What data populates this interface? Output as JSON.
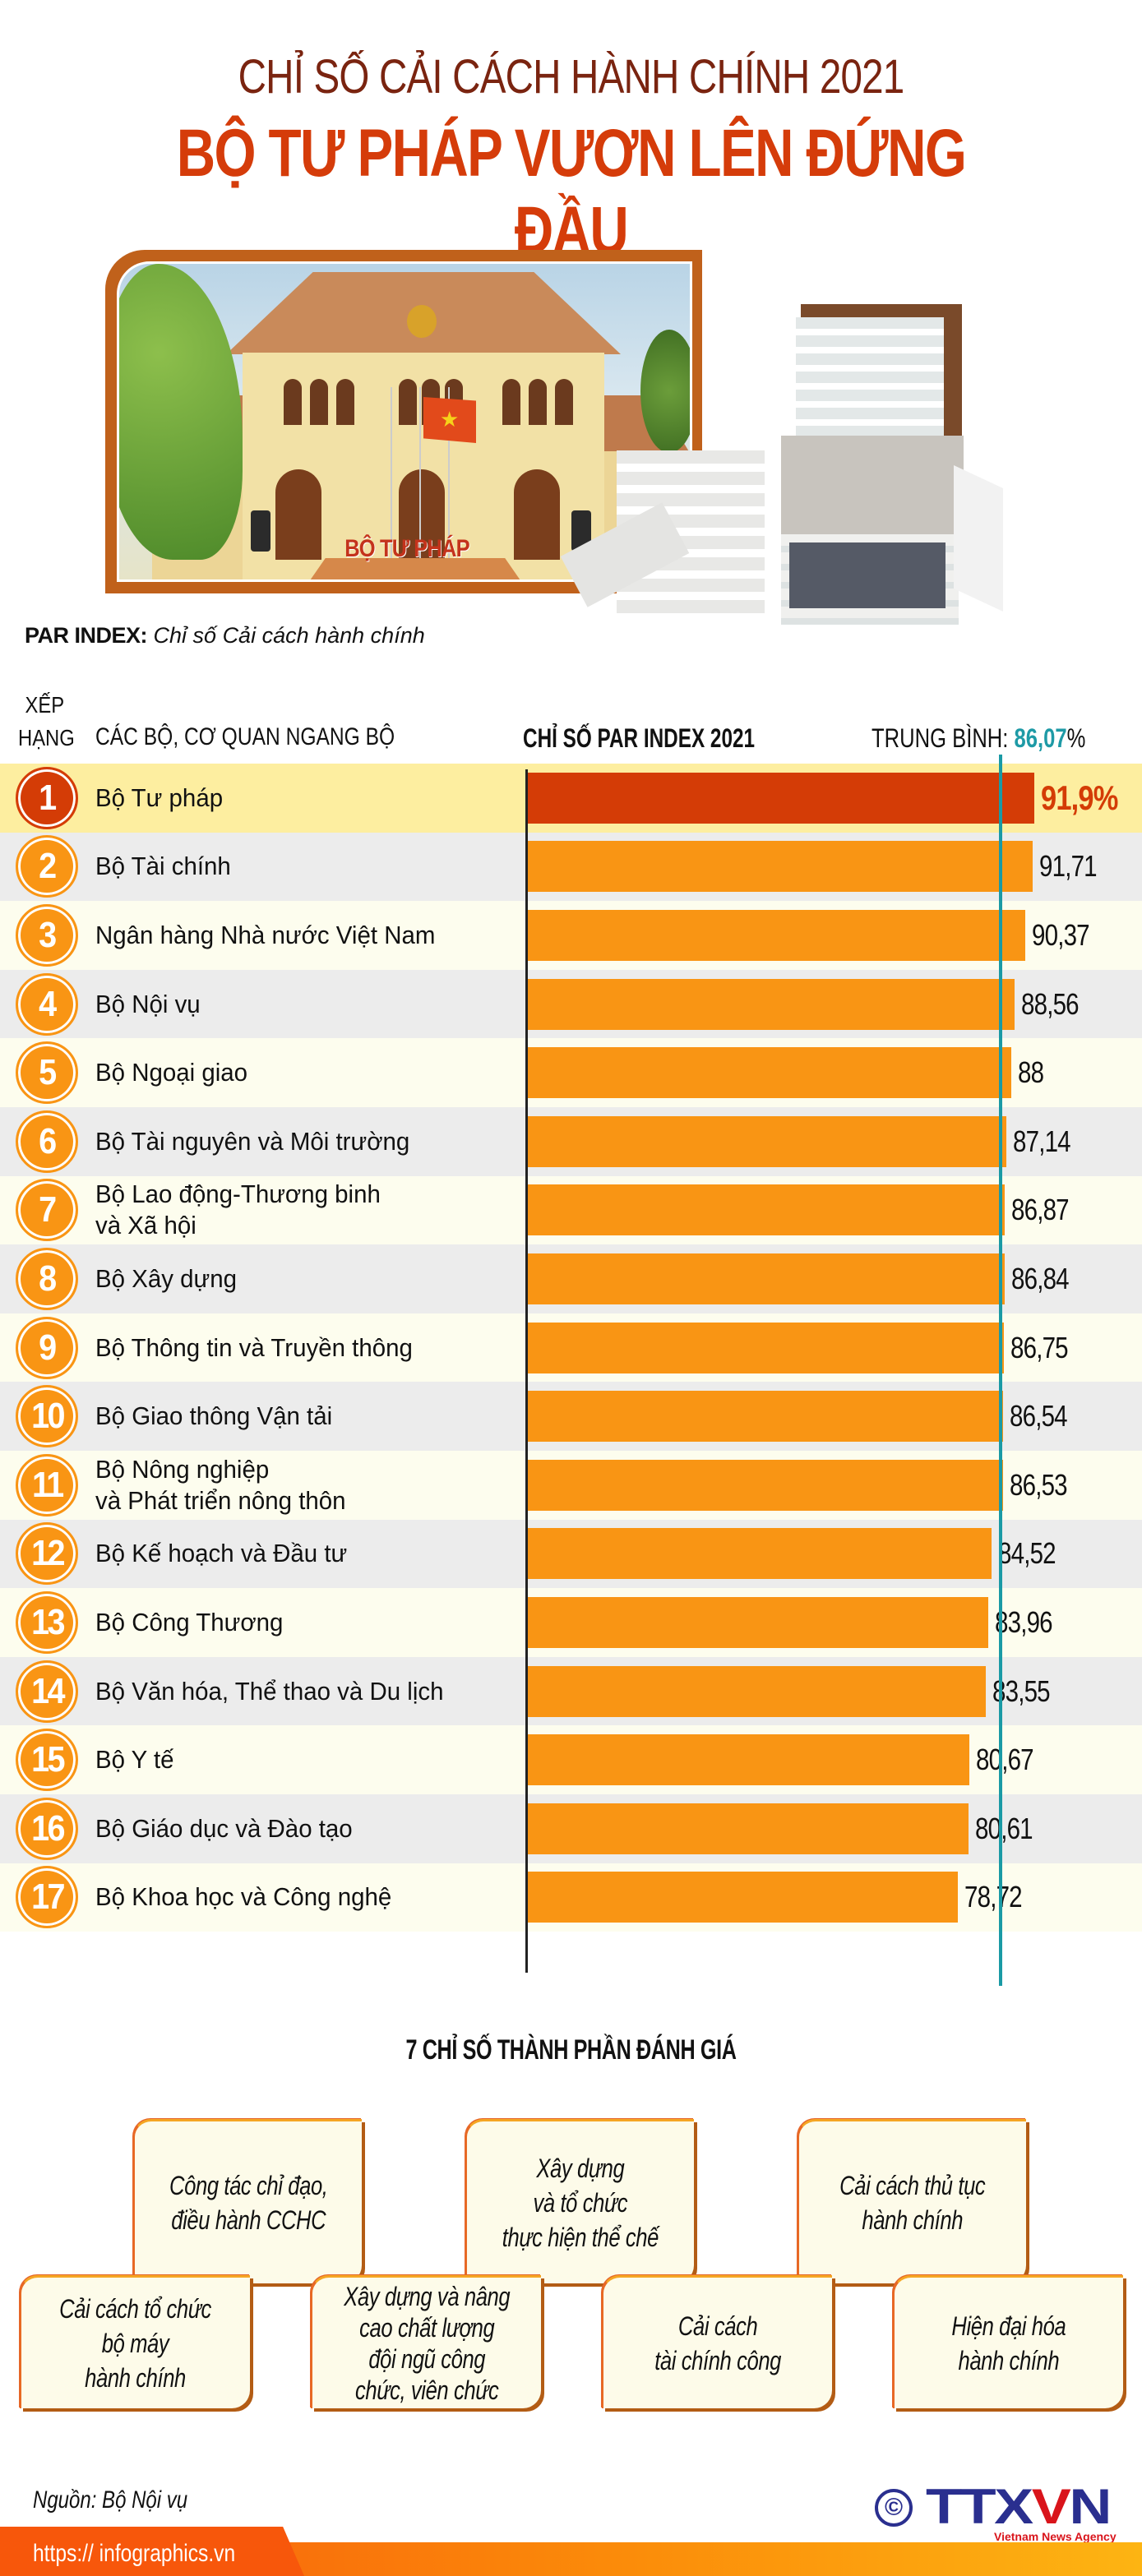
{
  "header": {
    "title_line1": "CHỈ SỐ CẢI CÁCH HÀNH CHÍNH 2021",
    "title_line2": "BỘ TƯ PHÁP VƯƠN LÊN ĐỨNG ĐẦU"
  },
  "illustration": {
    "building_sign": "BỘ TƯ PHÁP"
  },
  "legend": {
    "par_label": "PAR INDEX:",
    "par_desc": "Chỉ số Cải cách hành chính"
  },
  "table_header": {
    "rank_line1": "XẾP",
    "rank_line2": "HẠNG",
    "org": "CÁC BỘ, CƠ QUAN NGANG BỘ",
    "par": "CHỈ SỐ PAR INDEX 2021",
    "avg_label": "TRUNG BÌNH:",
    "avg_value": "86,07",
    "avg_unit": "%"
  },
  "colors": {
    "top_bar": "#d43c06",
    "bar": "#f99514",
    "avg_line": "#1a9aa5",
    "row_highlight": "#fdeea0",
    "row_cream": "#fdfdee",
    "row_gray": "#ececec",
    "title_dark": "#7a2410",
    "title_red": "#d53c0a"
  },
  "chart_data": {
    "type": "bar",
    "orientation": "horizontal",
    "title": "CHỈ SỐ PAR INDEX 2021",
    "xlabel": "",
    "ylabel": "CÁC BỘ, CƠ QUAN NGANG BỘ",
    "average": 86.07,
    "average_label": "TRUNG BÌNH: 86,07%",
    "grid": false,
    "categories": [
      "Bộ Tư pháp",
      "Bộ Tài chính",
      "Ngân hàng Nhà nước Việt Nam",
      "Bộ Nội vụ",
      "Bộ Ngoại giao",
      "Bộ Tài nguyên và Môi trường",
      "Bộ Lao động-Thương binh và Xã hội",
      "Bộ Xây dựng",
      "Bộ Thông tin và Truyền thông",
      "Bộ Giao thông Vận tải",
      "Bộ Nông nghiệp và Phát triển nông thôn",
      "Bộ Kế hoạch và Đầu tư",
      "Bộ Công Thương",
      "Bộ Văn hóa, Thể thao và Du lịch",
      "Bộ Y tế",
      "Bộ Giáo dục và Đào tạo",
      "Bộ Khoa học và Công nghệ"
    ],
    "values": [
      91.9,
      91.71,
      90.37,
      88.56,
      88,
      87.14,
      86.87,
      86.84,
      86.75,
      86.54,
      86.53,
      84.52,
      83.96,
      83.55,
      80.67,
      80.61,
      78.72
    ]
  },
  "rows": [
    {
      "rank": "1",
      "name": "Bộ Tư pháp",
      "value": 91.9,
      "label": "91,9%",
      "highlight": true
    },
    {
      "rank": "2",
      "name": "Bộ Tài chính",
      "value": 91.71,
      "label": "91,71"
    },
    {
      "rank": "3",
      "name": "Ngân hàng Nhà nước Việt Nam",
      "value": 90.37,
      "label": "90,37"
    },
    {
      "rank": "4",
      "name": "Bộ Nội vụ",
      "value": 88.56,
      "label": "88,56"
    },
    {
      "rank": "5",
      "name": "Bộ Ngoại giao",
      "value": 88,
      "label": "88"
    },
    {
      "rank": "6",
      "name": "Bộ Tài nguyên và Môi trường",
      "value": 87.14,
      "label": "87,14"
    },
    {
      "rank": "7",
      "name": "Bộ Lao động-Thương binh\nvà Xã hội",
      "value": 86.87,
      "label": "86,87"
    },
    {
      "rank": "8",
      "name": "Bộ Xây dựng",
      "value": 86.84,
      "label": "86,84"
    },
    {
      "rank": "9",
      "name": "Bộ Thông tin và Truyền thông",
      "value": 86.75,
      "label": "86,75"
    },
    {
      "rank": "10",
      "name": "Bộ Giao thông Vận tải",
      "value": 86.54,
      "label": "86,54"
    },
    {
      "rank": "11",
      "name": "Bộ Nông nghiệp\nvà Phát triển nông thôn",
      "value": 86.53,
      "label": "86,53"
    },
    {
      "rank": "12",
      "name": "Bộ Kế hoạch và Đầu tư",
      "value": 84.52,
      "label": "84,52"
    },
    {
      "rank": "13",
      "name": "Bộ Công Thương",
      "value": 83.96,
      "label": "83,96"
    },
    {
      "rank": "14",
      "name": "Bộ Văn hóa, Thể thao và Du lịch",
      "value": 83.55,
      "label": "83,55"
    },
    {
      "rank": "15",
      "name": "Bộ Y tế",
      "value": 80.67,
      "label": "80,67"
    },
    {
      "rank": "16",
      "name": "Bộ Giáo dục và Đào tạo",
      "value": 80.61,
      "label": "80,61"
    },
    {
      "rank": "17",
      "name": "Bộ Khoa học và Công nghệ",
      "value": 78.72,
      "label": "78,72"
    }
  ],
  "components": {
    "title": "7 CHỈ SỐ THÀNH PHẦN ĐÁNH GIÁ",
    "items": [
      "Công tác chỉ đạo,\nđiều hành CCHC",
      "Xây dựng\nvà tổ chức\nthực hiện thể chế",
      "Cải cách thủ tục\nhành chính",
      "Cải cách tổ chức\nbộ máy\nhành chính",
      "Xây dựng và nâng\ncao chất lượng\nđội ngũ công\nchức, viên chức",
      "Cải cách\ntài chính công",
      "Hiện đại hóa\nhành chính"
    ]
  },
  "footer": {
    "source": "Nguồn: Bộ Nội vụ",
    "url": "https:// infographics.vn",
    "logo_text": "TTXVN",
    "logo_sub": "Vietnam News Agency",
    "copyright": "©"
  }
}
